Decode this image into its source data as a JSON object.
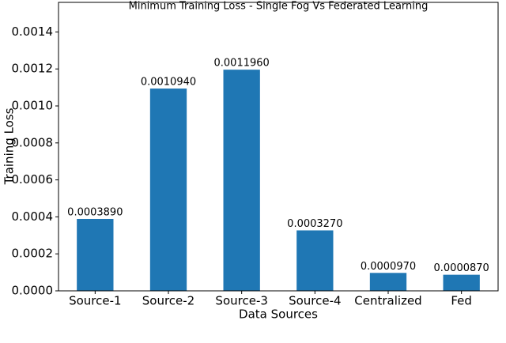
{
  "chart_data": {
    "type": "bar",
    "title": "Minimum Training Loss - Single Fog Vs Federated Learning",
    "x_label": "Data Sources",
    "y_label": "Training Loss",
    "categories": [
      "Source-1",
      "Source-2",
      "Source-3",
      "Source-4",
      "Centralized",
      "Fed"
    ],
    "values": [
      0.000389,
      0.001094,
      0.001196,
      0.000327,
      9.7e-05,
      8.7e-05
    ],
    "value_labels": [
      "0.0003890",
      "0.0010940",
      "0.0011960",
      "0.0003270",
      "0.0000970",
      "0.0000870"
    ],
    "color": "#1f77b4",
    "ylim": [
      0,
      0.00156
    ],
    "yticks": [
      {
        "value": 0,
        "label": "0.0000"
      },
      {
        "value": 0.0002,
        "label": "0.0002"
      },
      {
        "value": 0.0004,
        "label": "0.0004"
      },
      {
        "value": 0.0006,
        "label": "0.0006"
      },
      {
        "value": 0.0008,
        "label": "0.0008"
      },
      {
        "value": 0.001,
        "label": "0.0010"
      },
      {
        "value": 0.0012,
        "label": "0.0012"
      },
      {
        "value": 0.0014,
        "label": "0.0014"
      }
    ],
    "grid": false
  }
}
